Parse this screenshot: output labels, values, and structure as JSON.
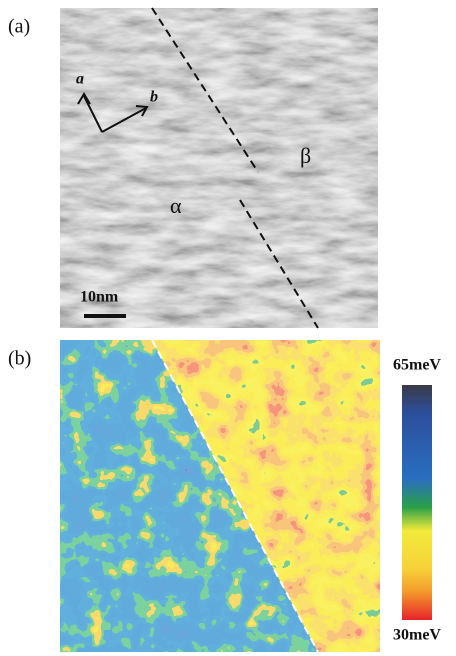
{
  "panel_a": {
    "label": "(a)",
    "axis_a": "a",
    "axis_b": "b",
    "domain_alpha": "α",
    "domain_beta": "β",
    "scale_bar": "10nm"
  },
  "panel_b": {
    "label": "(b)",
    "colorbar_max": "65meV",
    "colorbar_min": "30meV"
  }
}
